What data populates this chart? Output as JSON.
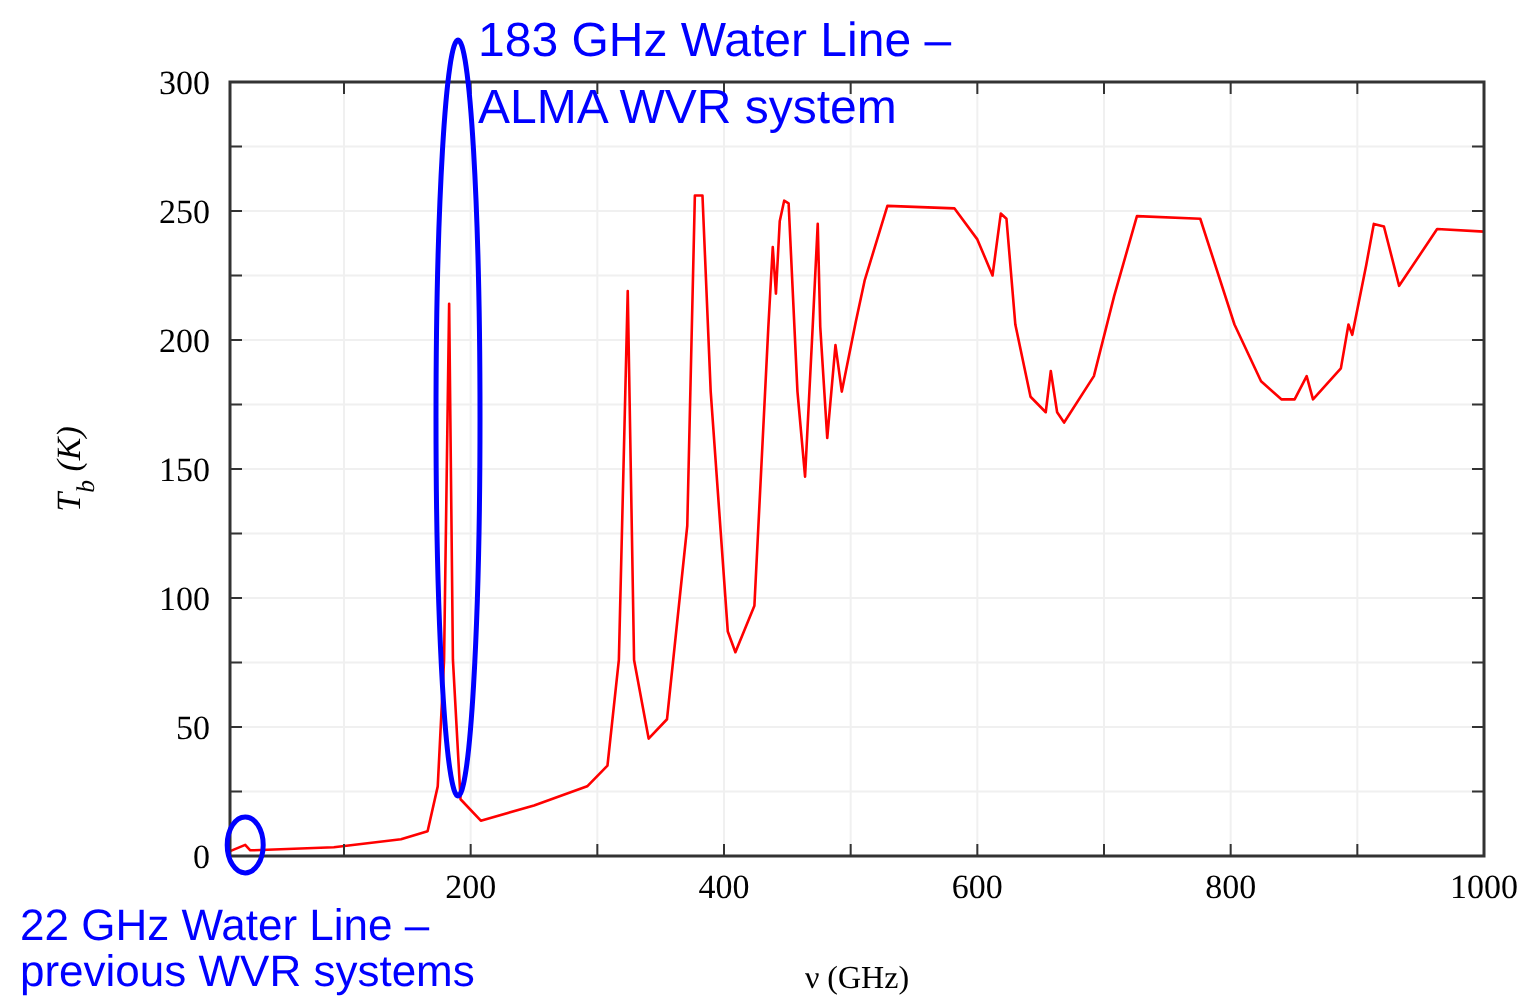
{
  "chart_data": {
    "type": "line",
    "xlabel": "ν (GHz)",
    "ylabel": "T$_{b}$ (K)",
    "xlim": [
      10,
      1000
    ],
    "ylim": [
      0,
      300
    ],
    "xticks": [
      {
        "value": 100,
        "label": null
      },
      200,
      {
        "value": 300,
        "label": null
      },
      400,
      {
        "value": 500,
        "label": null
      },
      600,
      {
        "value": 700,
        "label": null
      },
      800,
      {
        "value": 900,
        "label": null
      },
      1000
    ],
    "yticks": [
      0,
      {
        "value": 25,
        "label": null
      },
      50,
      {
        "value": 75,
        "label": null
      },
      100,
      {
        "value": 125,
        "label": null
      },
      150,
      {
        "value": 175,
        "label": null
      },
      200,
      {
        "value": 225,
        "label": null
      },
      250,
      {
        "value": 275,
        "label": null
      },
      300
    ],
    "grid": true,
    "line_style": "solid",
    "series": [
      {
        "color": "#ff0000",
        "x": [
          10.6,
          22,
          26,
          92,
          145,
          166,
          174,
          179,
          183,
          186,
          192,
          208,
          250,
          292,
          308,
          317,
          324,
          329,
          340.5,
          355,
          371,
          377,
          383,
          389.5,
          403,
          409,
          424,
          435,
          438.5,
          441,
          444,
          447.5,
          451,
          458,
          464,
          470,
          474,
          476,
          481.5,
          488,
          493,
          504,
          511,
          529,
          582,
          600,
          612,
          618.5,
          623,
          630,
          642,
          654,
          658,
          663,
          668.5,
          692,
          708,
          726,
          776,
          803,
          824,
          840,
          850.5,
          860,
          865,
          887,
          893,
          896,
          907,
          913,
          921,
          933,
          963,
          1000
        ],
        "values": [
          2,
          4.3,
          2.2,
          3.4,
          6.5,
          9.6,
          27,
          76,
          214,
          76,
          22,
          13.7,
          19.6,
          27,
          35,
          76,
          219,
          76,
          45.5,
          53,
          128,
          256,
          256,
          180,
          87,
          79,
          97,
          205,
          236,
          218,
          246,
          254,
          253,
          180,
          147,
          205,
          245,
          205,
          162,
          198,
          180,
          207,
          223,
          252,
          251,
          239,
          225,
          249,
          247,
          206,
          178,
          172,
          188,
          172,
          168,
          186,
          217,
          248,
          247,
          206,
          184,
          177,
          177,
          186,
          177,
          189,
          206,
          202,
          229,
          245,
          244,
          221,
          243,
          242
        ]
      }
    ],
    "annotations": [
      "183 GHz Water Line –\nALMA WVR system",
      {
        "text": "22 GHz Water Line –\nprevious WVR systems",
        "x": 22,
        "y": 4.3
      }
    ]
  }
}
